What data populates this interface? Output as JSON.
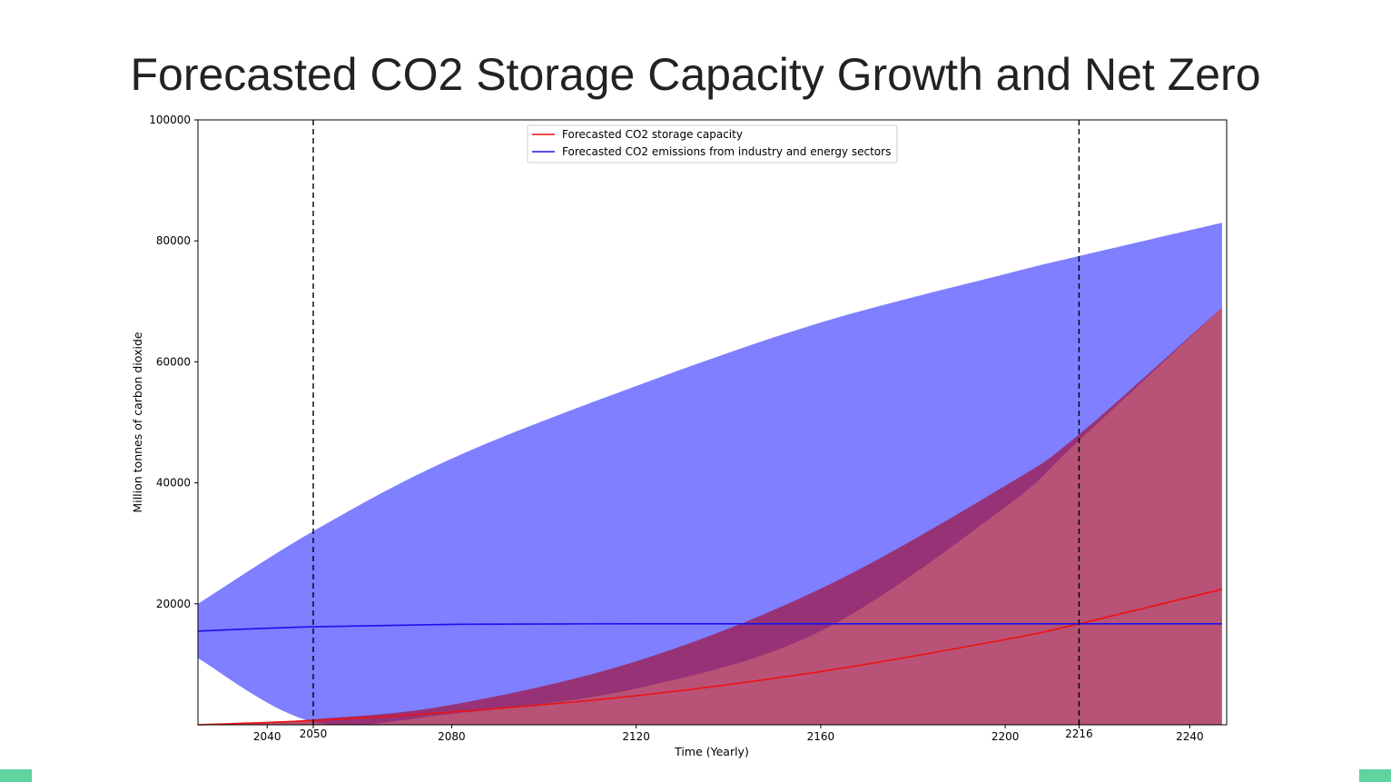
{
  "slide": {
    "title": "Forecasted CO2 Storage Capacity Growth and Net Zero",
    "accent_color": "#5fd3a0"
  },
  "chart_data": {
    "type": "line",
    "xlabel": "Time (Yearly)",
    "ylabel": "Million tonnes of carbon dioxide",
    "xlim": [
      2025,
      2248
    ],
    "ylim": [
      0,
      100000
    ],
    "x_ticks": [
      2040,
      2050,
      2080,
      2120,
      2160,
      2200,
      2216,
      2240
    ],
    "y_ticks": [
      20000,
      40000,
      60000,
      80000,
      100000
    ],
    "grid": false,
    "legend_position": "top-center",
    "series": [
      {
        "name": "Forecasted CO2 storage capacity",
        "color": "#ee1111",
        "band_color": "#a01848",
        "x": [
          2025,
          2050,
          2080,
          2120,
          2160,
          2200,
          2216,
          2247
        ],
        "values": [
          0,
          700,
          2100,
          4800,
          8800,
          14100,
          16700,
          22400
        ],
        "lower": [
          0,
          0,
          0,
          0,
          0,
          0,
          0,
          0
        ],
        "upper": [
          0,
          900,
          3300,
          10500,
          22500,
          39500,
          48000,
          69000
        ]
      },
      {
        "name": "Forecasted CO2 emissions from industry and energy sectors",
        "color": "#1a10ee",
        "band_color": "#0000ff",
        "x": [
          2025,
          2050,
          2080,
          2120,
          2160,
          2200,
          2216,
          2247
        ],
        "values": [
          15500,
          16200,
          16600,
          16700,
          16700,
          16700,
          16700,
          16700
        ],
        "lower": [
          11000,
          500,
          1800,
          6000,
          15500,
          36000,
          47000,
          69000
        ],
        "upper": [
          20000,
          32000,
          44000,
          56000,
          66500,
          74500,
          77500,
          83000
        ]
      }
    ],
    "vertical_lines": [
      {
        "x": 2050,
        "label": "2050",
        "style": "dashed",
        "color": "#000000"
      },
      {
        "x": 2216,
        "label": "2216",
        "style": "dashed",
        "color": "#000000"
      }
    ]
  }
}
